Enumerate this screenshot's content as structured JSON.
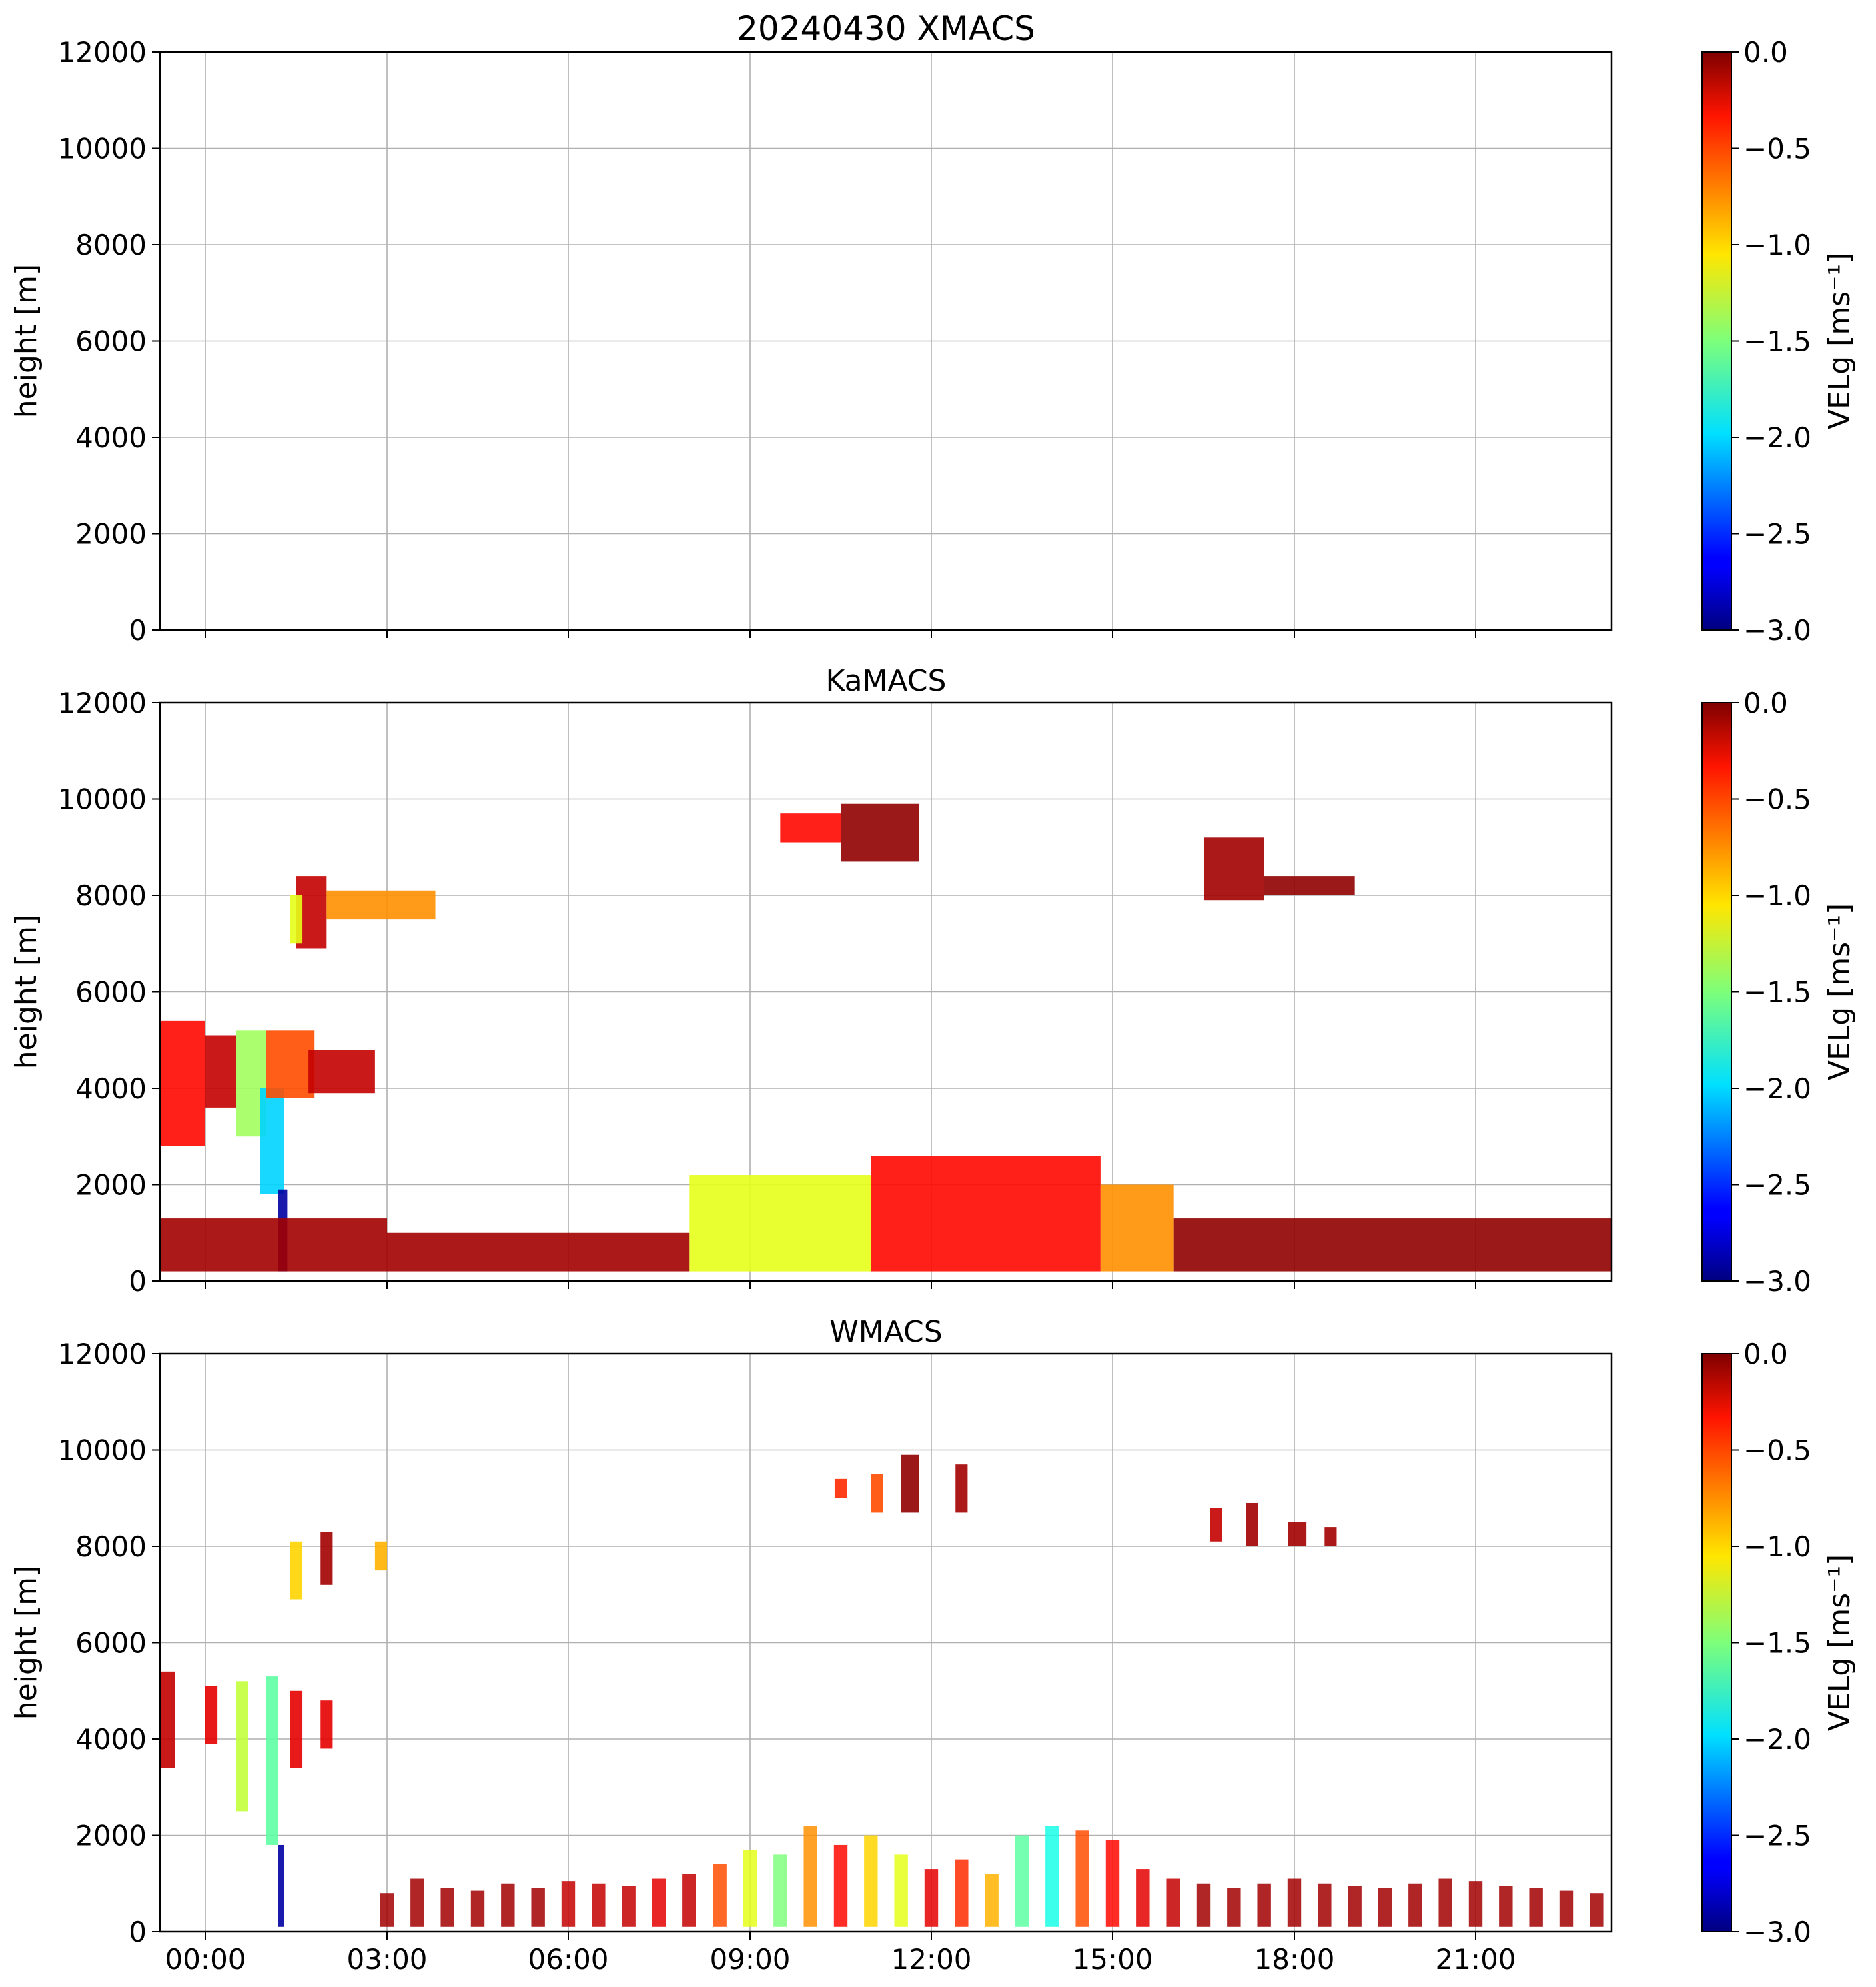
{
  "chart_data": [
    {
      "type": "heatmap",
      "title": "20240430 XMACS",
      "ylabel": "height [m]",
      "xlabel": "",
      "x_tick_labels": [
        "",
        "",
        "",
        "",
        "",
        "",
        "",
        ""
      ],
      "x_hours": [
        0,
        3,
        6,
        9,
        12,
        15,
        18,
        21
      ],
      "xlim": [
        -0.75,
        23.25
      ],
      "y_ticks": [
        "0",
        "2000",
        "4000",
        "6000",
        "8000",
        "10000",
        "12000"
      ],
      "ylim": [
        0,
        12000
      ],
      "grid": true,
      "colorbar": {
        "label": "VELg [ms⁻¹]",
        "ticks": [
          "0.0",
          "−0.5",
          "−1.0",
          "−1.5",
          "−2.0",
          "−2.5",
          "−3.0"
        ],
        "range": [
          -3,
          0
        ],
        "colormap": "jet"
      },
      "regions": []
    },
    {
      "type": "heatmap",
      "title": "KaMACS",
      "ylabel": "height [m]",
      "xlabel": "",
      "x_tick_labels": [
        "",
        "",
        "",
        "",
        "",
        "",
        "",
        ""
      ],
      "x_hours": [
        0,
        3,
        6,
        9,
        12,
        15,
        18,
        21
      ],
      "xlim": [
        -0.75,
        23.25
      ],
      "y_ticks": [
        "0",
        "2000",
        "4000",
        "6000",
        "8000",
        "10000",
        "12000"
      ],
      "ylim": [
        0,
        12000
      ],
      "grid": true,
      "colorbar": {
        "label": "VELg [ms⁻¹]",
        "ticks": [
          "0.0",
          "−0.5",
          "−1.0",
          "−1.5",
          "−2.0",
          "−2.5",
          "−3.0"
        ],
        "range": [
          -3,
          0
        ],
        "colormap": "jet"
      },
      "regions": [
        {
          "t0": -0.75,
          "t1": 0.0,
          "z0": 2800,
          "z1": 5400,
          "v": -0.4
        },
        {
          "t0": 0.0,
          "t1": 0.5,
          "z0": 3600,
          "z1": 5100,
          "v": -0.2
        },
        {
          "t0": 0.5,
          "t1": 1.0,
          "z0": 3000,
          "z1": 5200,
          "v": -1.4
        },
        {
          "t0": 0.9,
          "t1": 1.3,
          "z0": 1800,
          "z1": 4000,
          "v": -2.0
        },
        {
          "t0": 1.0,
          "t1": 1.8,
          "z0": 3800,
          "z1": 5200,
          "v": -0.6
        },
        {
          "t0": 1.7,
          "t1": 2.8,
          "z0": 3900,
          "z1": 4800,
          "v": -0.2
        },
        {
          "t0": 1.2,
          "t1": 1.35,
          "z0": 200,
          "z1": 1900,
          "v": -2.9
        },
        {
          "t0": 1.5,
          "t1": 2.0,
          "z0": 6900,
          "z1": 8400,
          "v": -0.2
        },
        {
          "t0": 1.4,
          "t1": 1.6,
          "z0": 7000,
          "z1": 8000,
          "v": -1.2
        },
        {
          "t0": 2.0,
          "t1": 3.8,
          "z0": 7500,
          "z1": 8100,
          "v": -0.8
        },
        {
          "t0": 9.5,
          "t1": 10.5,
          "z0": 9100,
          "z1": 9700,
          "v": -0.4
        },
        {
          "t0": 10.5,
          "t1": 11.8,
          "z0": 8700,
          "z1": 9900,
          "v": -0.05
        },
        {
          "t0": 16.5,
          "t1": 17.5,
          "z0": 7900,
          "z1": 9200,
          "v": -0.1
        },
        {
          "t0": 17.5,
          "t1": 19.0,
          "z0": 8000,
          "z1": 8400,
          "v": -0.05
        },
        {
          "t0": -0.75,
          "t1": 3.0,
          "z0": 200,
          "z1": 1300,
          "v": -0.1
        },
        {
          "t0": 3.0,
          "t1": 8.0,
          "z0": 200,
          "z1": 1000,
          "v": -0.1
        },
        {
          "t0": 8.0,
          "t1": 11.0,
          "z0": 200,
          "z1": 2200,
          "v": -1.2
        },
        {
          "t0": 11.0,
          "t1": 14.8,
          "z0": 200,
          "z1": 2600,
          "v": -0.4
        },
        {
          "t0": 14.8,
          "t1": 16.0,
          "z0": 200,
          "z1": 2000,
          "v": -0.8
        },
        {
          "t0": 16.0,
          "t1": 23.25,
          "z0": 200,
          "z1": 1300,
          "v": -0.05
        }
      ]
    },
    {
      "type": "heatmap",
      "title": "WMACS",
      "ylabel": "height [m]",
      "xlabel": "",
      "x_tick_labels": [
        "00:00",
        "03:00",
        "06:00",
        "09:00",
        "12:00",
        "15:00",
        "18:00",
        "21:00"
      ],
      "x_hours": [
        0,
        3,
        6,
        9,
        12,
        15,
        18,
        21
      ],
      "xlim": [
        -0.75,
        23.25
      ],
      "y_ticks": [
        "0",
        "2000",
        "4000",
        "6000",
        "8000",
        "10000",
        "12000"
      ],
      "ylim": [
        0,
        12000
      ],
      "grid": true,
      "colorbar": {
        "label": "VELg [ms⁻¹]",
        "ticks": [
          "0.0",
          "−0.5",
          "−1.0",
          "−1.5",
          "−2.0",
          "−2.5",
          "−3.0"
        ],
        "range": [
          -3,
          0
        ],
        "colormap": "jet"
      },
      "regions": [
        {
          "t0": -0.75,
          "t1": -0.5,
          "z0": 3400,
          "z1": 5400,
          "v": -0.2
        },
        {
          "t0": 0.0,
          "t1": 0.2,
          "z0": 3900,
          "z1": 5100,
          "v": -0.3
        },
        {
          "t0": 0.5,
          "t1": 0.7,
          "z0": 2500,
          "z1": 5200,
          "v": -1.3
        },
        {
          "t0": 1.0,
          "t1": 1.2,
          "z0": 1800,
          "z1": 5300,
          "v": -1.6
        },
        {
          "t0": 1.2,
          "t1": 1.3,
          "z0": 100,
          "z1": 1800,
          "v": -2.9
        },
        {
          "t0": 1.4,
          "t1": 1.6,
          "z0": 3400,
          "z1": 5000,
          "v": -0.3
        },
        {
          "t0": 1.9,
          "t1": 2.1,
          "z0": 3800,
          "z1": 4800,
          "v": -0.3
        },
        {
          "t0": 1.4,
          "t1": 1.6,
          "z0": 6900,
          "z1": 8100,
          "v": -1.0
        },
        {
          "t0": 1.9,
          "t1": 2.1,
          "z0": 7200,
          "z1": 8300,
          "v": -0.1
        },
        {
          "t0": 2.8,
          "t1": 3.0,
          "z0": 7500,
          "z1": 8100,
          "v": -0.9
        },
        {
          "t0": 10.4,
          "t1": 10.6,
          "z0": 9000,
          "z1": 9400,
          "v": -0.5
        },
        {
          "t0": 11.0,
          "t1": 11.2,
          "z0": 8700,
          "z1": 9500,
          "v": -0.6
        },
        {
          "t0": 11.5,
          "t1": 11.8,
          "z0": 8700,
          "z1": 9900,
          "v": -0.05
        },
        {
          "t0": 12.4,
          "t1": 12.6,
          "z0": 8700,
          "z1": 9700,
          "v": -0.1
        },
        {
          "t0": 16.6,
          "t1": 16.8,
          "z0": 8100,
          "z1": 8800,
          "v": -0.2
        },
        {
          "t0": 17.2,
          "t1": 17.4,
          "z0": 8000,
          "z1": 8900,
          "v": -0.1
        },
        {
          "t0": 17.9,
          "t1": 18.2,
          "z0": 8000,
          "z1": 8500,
          "v": -0.1
        },
        {
          "t0": 18.5,
          "t1": 18.7,
          "z0": 8000,
          "z1": 8400,
          "v": -0.1
        }
      ],
      "bars": {
        "start": 3.0,
        "end": 23.0,
        "step": 0.5,
        "heights": [
          800,
          1100,
          900,
          850,
          1000,
          900,
          1050,
          1000,
          950,
          1100,
          1200,
          1400,
          1700,
          1600,
          2200,
          1800,
          2000,
          1600,
          1300,
          1500,
          1200,
          2000,
          2200,
          2100,
          1900,
          1300,
          1100,
          1000,
          900,
          1000,
          1100,
          1000,
          950,
          900,
          1000,
          1100,
          1050,
          950,
          900,
          850,
          800
        ],
        "values": [
          -0.1,
          -0.1,
          -0.1,
          -0.1,
          -0.1,
          -0.1,
          -0.2,
          -0.2,
          -0.2,
          -0.3,
          -0.2,
          -0.6,
          -1.2,
          -1.5,
          -0.8,
          -0.4,
          -1.0,
          -1.2,
          -0.3,
          -0.5,
          -0.9,
          -1.6,
          -1.8,
          -0.6,
          -0.4,
          -0.3,
          -0.2,
          -0.1,
          -0.1,
          -0.1,
          -0.1,
          -0.1,
          -0.1,
          -0.1,
          -0.1,
          -0.1,
          -0.1,
          -0.1,
          -0.1,
          -0.1,
          -0.1
        ]
      }
    }
  ]
}
